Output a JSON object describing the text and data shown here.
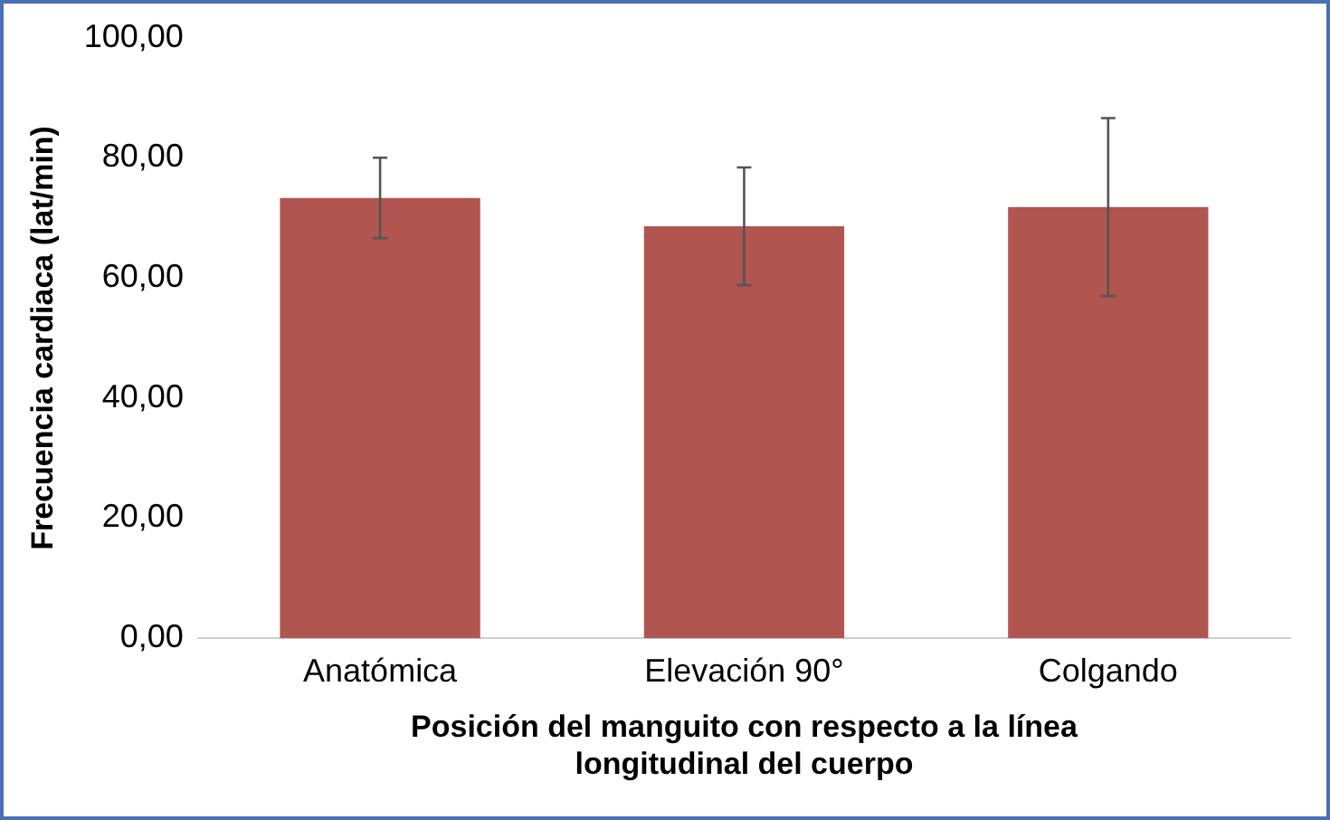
{
  "chart_data": {
    "type": "bar",
    "xlabel": "Posición del manguito con respecto a la línea longitudinal del cuerpo",
    "ylabel": "Frecuencia cardiaca (lat/min)",
    "categories": [
      "Anatómica",
      "Elevación 90°",
      "Colgando"
    ],
    "values": [
      73.3,
      68.6,
      71.8
    ],
    "errors": [
      6.7,
      9.8,
      14.8
    ],
    "color": "#b0554f",
    "ylim": [
      0,
      100
    ],
    "yticks": [
      {
        "value": 0,
        "label": "0,00"
      },
      {
        "value": 20,
        "label": "20,00"
      },
      {
        "value": 40,
        "label": "40,00"
      },
      {
        "value": 60,
        "label": "60,00"
      },
      {
        "value": 80,
        "label": "80,00"
      },
      {
        "value": 100,
        "label": "100,00"
      }
    ],
    "grid": false
  }
}
